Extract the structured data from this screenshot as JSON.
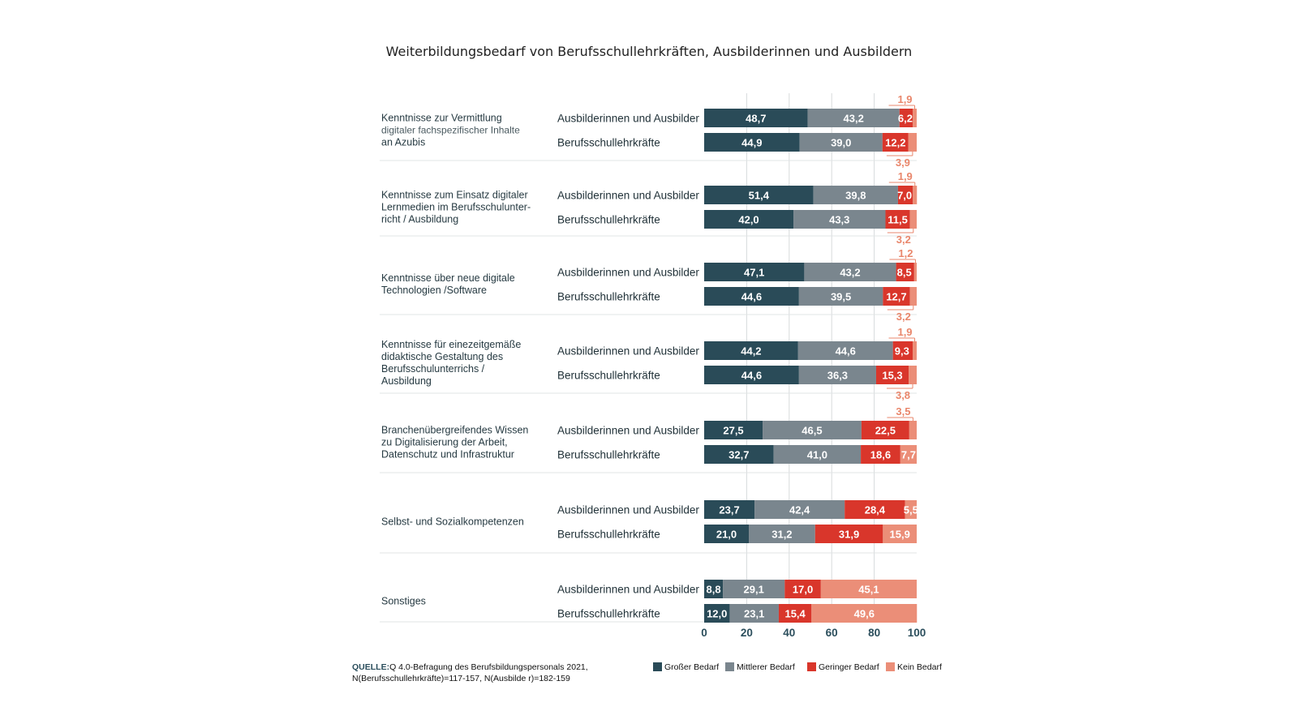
{
  "chart_data": {
    "type": "bar",
    "orientation": "horizontal-stacked",
    "title": "Weiterbildungsbedarf von Berufsschullehrkräften, Ausbilderinnen und Ausbildern",
    "series_names": [
      "Großer Bedarf",
      "Mittlerer Bedarf",
      "Geringer Bedarf",
      "Kein Bedarf"
    ],
    "colors": [
      "#2a4b58",
      "#7a868e",
      "#d9362b",
      "#eb8e78"
    ],
    "xlim": [
      0,
      100
    ],
    "xticks": [
      "0",
      "20",
      "40",
      "60",
      "80",
      "100"
    ],
    "categories": [
      {
        "label_lines": [
          "Kenntnisse zur Vermittlung",
          "digitaler fachspezifischer Inhalte",
          "an Azubis"
        ],
        "rows": [
          {
            "group": "Ausbilderinnen und Ausbilder",
            "values": [
              48.7,
              43.2,
              6.2,
              1.9
            ],
            "labels": [
              "48,7",
              "43,2",
              "6,2",
              "1,9"
            ]
          },
          {
            "group": "Berufsschullehrkräfte",
            "values": [
              44.9,
              39.0,
              12.2,
              3.9
            ],
            "labels": [
              "44,9",
              "39,0",
              "12,2",
              "3,9"
            ]
          }
        ]
      },
      {
        "label_lines": [
          "Kenntnisse zum Einsatz digitaler",
          "Lernmedien im Berufsschulunter-",
          "richt / Ausbildung"
        ],
        "rows": [
          {
            "group": "Ausbilderinnen und Ausbilder",
            "values": [
              51.4,
              39.8,
              7.0,
              1.9
            ],
            "labels": [
              "51,4",
              "39,8",
              "7,0",
              "1,9"
            ]
          },
          {
            "group": "Berufsschullehrkräfte",
            "values": [
              42.0,
              43.3,
              11.5,
              3.2
            ],
            "labels": [
              "42,0",
              "43,3",
              "11,5",
              "3,2"
            ]
          }
        ]
      },
      {
        "label_lines": [
          "Kenntnisse über neue digitale",
          "Technologien /Software"
        ],
        "rows": [
          {
            "group": "Ausbilderinnen und Ausbilder",
            "values": [
              47.1,
              43.2,
              8.5,
              1.2
            ],
            "labels": [
              "47,1",
              "43,2",
              "8,5",
              "1,2"
            ]
          },
          {
            "group": "Berufsschullehrkräfte",
            "values": [
              44.6,
              39.5,
              12.7,
              3.2
            ],
            "labels": [
              "44,6",
              "39,5",
              "12,7",
              "3,2"
            ]
          }
        ]
      },
      {
        "label_lines": [
          "Kenntnisse für einezeitgemäße",
          "didaktische Gestaltung des",
          "Berufsschulunterrichs /",
          "Ausbildung"
        ],
        "rows": [
          {
            "group": "Ausbilderinnen und Ausbilder",
            "values": [
              44.2,
              44.6,
              9.3,
              1.9
            ],
            "labels": [
              "44,2",
              "44,6",
              "9,3",
              "1,9"
            ]
          },
          {
            "group": "Berufsschullehrkräfte",
            "values": [
              44.6,
              36.3,
              15.3,
              3.8
            ],
            "labels": [
              "44,6",
              "36,3",
              "15,3",
              "3,8"
            ]
          }
        ]
      },
      {
        "label_lines": [
          "Branchenübergreifendes Wissen",
          "zu Digitalisierung der Arbeit,",
          "Datenschutz und Infrastruktur"
        ],
        "rows": [
          {
            "group": "Ausbilderinnen und Ausbilder",
            "values": [
              27.5,
              46.5,
              22.5,
              3.5
            ],
            "labels": [
              "27,5",
              "46,5",
              "22,5",
              "3,5"
            ]
          },
          {
            "group": "Berufsschullehrkräfte",
            "values": [
              32.7,
              41.0,
              18.6,
              7.7
            ],
            "labels": [
              "32,7",
              "41,0",
              "18,6",
              "7,7"
            ]
          }
        ]
      },
      {
        "label_lines": [
          "Selbst- und Sozialkompetenzen"
        ],
        "rows": [
          {
            "group": "Ausbilderinnen und Ausbilder",
            "values": [
              23.7,
              42.4,
              28.4,
              5.5
            ],
            "labels": [
              "23,7",
              "42,4",
              "28,4",
              "5,5"
            ]
          },
          {
            "group": "Berufsschullehrkräfte",
            "values": [
              21.0,
              31.2,
              31.9,
              15.9
            ],
            "labels": [
              "21,0",
              "31,2",
              "31,9",
              "15,9"
            ]
          }
        ]
      },
      {
        "label_lines": [
          "Sonstiges"
        ],
        "rows": [
          {
            "group": "Ausbilderinnen und Ausbilder",
            "values": [
              8.8,
              29.1,
              17.0,
              45.1
            ],
            "labels": [
              "8,8",
              "29,1",
              "17,0",
              "45,1"
            ]
          },
          {
            "group": "Berufsschullehrkräfte",
            "values": [
              12.0,
              23.1,
              15.4,
              49.6
            ],
            "labels": [
              "12,0",
              "23,1",
              "15,4",
              "49,6"
            ]
          }
        ]
      }
    ],
    "source_label": "QUELLE:",
    "source_lines": [
      "Q 4.0-Befragung des Berufsbildungspersonals 2021,",
      "N(Berufsschullehrkräfte)=117-157, N(Ausbilde r)=182-159"
    ]
  }
}
